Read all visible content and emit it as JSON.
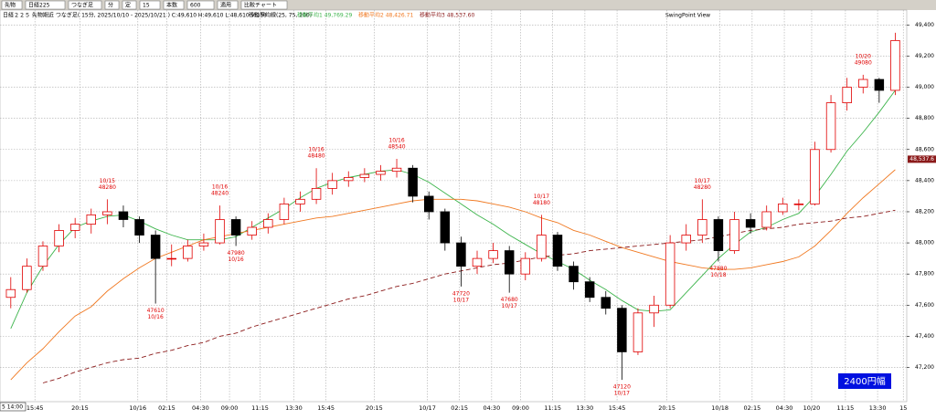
{
  "toolbar": [
    "先物",
    "日経225",
    "つなぎ足",
    "分",
    "定",
    "15",
    "本数",
    "600",
    "適用",
    "比較チャート"
  ],
  "chart_data": {
    "type": "candlestick",
    "title": "日経２２５ 先物期近 つなぎ足( 15分, 2025/10/10 - 2025/10/21 )  C:49,610 H:49,610 L:48,610 V:138",
    "indicator_title": "移動平均線(25, 75, 200)",
    "swing_label": "SwingPoint View",
    "cursor_label": "5 14:00",
    "up_color": "#e00000",
    "down_color": "#000000",
    "ylim": [
      46980,
      49490
    ],
    "xlim": [
      -0.5,
      55.6
    ],
    "grid": true,
    "yticks": [
      {
        "value": 47200,
        "label": "47,200"
      },
      {
        "value": 47400,
        "label": "47,400"
      },
      {
        "value": 47600,
        "label": "47,600"
      },
      {
        "value": 47800,
        "label": "47,800"
      },
      {
        "value": 48000,
        "label": "48,000"
      },
      {
        "value": 48200,
        "label": "48,200"
      },
      {
        "value": 48400,
        "label": "48,400"
      },
      {
        "value": 48600,
        "label": "48,600"
      },
      {
        "value": 48800,
        "label": "48,800"
      },
      {
        "value": 49000,
        "label": "49,000"
      },
      {
        "value": 49200,
        "label": "49,200"
      },
      {
        "value": 49400,
        "label": "49,400"
      }
    ],
    "xticks": [
      {
        "value": 1.5,
        "label": "15:45"
      },
      {
        "value": 4.3,
        "label": "20:15"
      },
      {
        "value": 7.9,
        "label": "10/16"
      },
      {
        "value": 9.7,
        "label": "02:15"
      },
      {
        "value": 11.8,
        "label": "04:30"
      },
      {
        "value": 13.6,
        "label": "09:00"
      },
      {
        "value": 15.5,
        "label": "11:15"
      },
      {
        "value": 17.6,
        "label": "13:30"
      },
      {
        "value": 19.6,
        "label": "15:45"
      },
      {
        "value": 22.6,
        "label": "20:15"
      },
      {
        "value": 25.9,
        "label": "10/17"
      },
      {
        "value": 27.9,
        "label": "02:15"
      },
      {
        "value": 29.9,
        "label": "04:30"
      },
      {
        "value": 31.7,
        "label": "09:00"
      },
      {
        "value": 33.7,
        "label": "11:15"
      },
      {
        "value": 35.7,
        "label": "13:30"
      },
      {
        "value": 37.7,
        "label": "15:45"
      },
      {
        "value": 40.8,
        "label": "20:15"
      },
      {
        "value": 44.1,
        "label": "10/18"
      },
      {
        "value": 46.1,
        "label": "02:15"
      },
      {
        "value": 48.1,
        "label": "04:30"
      },
      {
        "value": 49.8,
        "label": "10/20"
      },
      {
        "value": 51.9,
        "label": "11:15"
      },
      {
        "value": 53.9,
        "label": "13:30"
      },
      {
        "value": 55.5,
        "label": "15"
      }
    ],
    "candles": [
      [
        47650,
        47780,
        47580,
        47700
      ],
      [
        47700,
        47900,
        47680,
        47850
      ],
      [
        47850,
        48010,
        47820,
        47980
      ],
      [
        47980,
        48120,
        47940,
        48080
      ],
      [
        48080,
        48160,
        48030,
        48120
      ],
      [
        48120,
        48220,
        48060,
        48180
      ],
      [
        48180,
        48280,
        48120,
        48200
      ],
      [
        48200,
        48240,
        48100,
        48150
      ],
      [
        48150,
        48170,
        48000,
        48050
      ],
      [
        48050,
        48080,
        47610,
        47900
      ],
      [
        47900,
        47990,
        47850,
        47900
      ],
      [
        47900,
        48020,
        47880,
        47980
      ],
      [
        47980,
        48060,
        47950,
        48000
      ],
      [
        48000,
        48240,
        47990,
        48150
      ],
      [
        48150,
        48170,
        47980,
        48050
      ],
      [
        48050,
        48140,
        48020,
        48100
      ],
      [
        48100,
        48190,
        48060,
        48150
      ],
      [
        48150,
        48290,
        48120,
        48250
      ],
      [
        48250,
        48330,
        48200,
        48280
      ],
      [
        48280,
        48480,
        48250,
        48350
      ],
      [
        48350,
        48450,
        48310,
        48400
      ],
      [
        48400,
        48460,
        48360,
        48420
      ],
      [
        48420,
        48480,
        48390,
        48440
      ],
      [
        48440,
        48500,
        48400,
        48460
      ],
      [
        48460,
        48540,
        48420,
        48480
      ],
      [
        48480,
        48500,
        48260,
        48300
      ],
      [
        48300,
        48330,
        48150,
        48200
      ],
      [
        48200,
        48220,
        47950,
        48000
      ],
      [
        48000,
        48040,
        47720,
        47850
      ],
      [
        47850,
        47950,
        47800,
        47900
      ],
      [
        47900,
        48000,
        47870,
        47950
      ],
      [
        47950,
        47980,
        47680,
        47800
      ],
      [
        47800,
        47940,
        47760,
        47900
      ],
      [
        47900,
        48180,
        47880,
        48050
      ],
      [
        48050,
        48070,
        47820,
        47850
      ],
      [
        47850,
        47880,
        47700,
        47750
      ],
      [
        47750,
        47780,
        47620,
        47650
      ],
      [
        47650,
        47690,
        47540,
        47580
      ],
      [
        47580,
        47600,
        47120,
        47300
      ],
      [
        47300,
        47580,
        47280,
        47550
      ],
      [
        47550,
        47660,
        47460,
        47600
      ],
      [
        47600,
        48050,
        47580,
        48000
      ],
      [
        48000,
        48120,
        47950,
        48050
      ],
      [
        48050,
        48280,
        48000,
        48150
      ],
      [
        48150,
        48170,
        47880,
        47950
      ],
      [
        47950,
        48200,
        47930,
        48150
      ],
      [
        48150,
        48190,
        48060,
        48100
      ],
      [
        48100,
        48240,
        48080,
        48200
      ],
      [
        48200,
        48290,
        48180,
        48250
      ],
      [
        48250,
        48280,
        48210,
        48250
      ],
      [
        48250,
        48650,
        48240,
        48600
      ],
      [
        48600,
        48950,
        48580,
        48900
      ],
      [
        48900,
        49060,
        48850,
        49000
      ],
      [
        49000,
        49080,
        48960,
        49050
      ],
      [
        49050,
        49060,
        48900,
        48980
      ],
      [
        48980,
        49350,
        48950,
        49300
      ]
    ],
    "series": [
      {
        "name": "移動平均1 49,769.29",
        "color": "#3cb44b",
        "dashed": false,
        "values": [
          47450,
          47680,
          47850,
          47990,
          48100,
          48140,
          48170,
          48180,
          48140,
          48090,
          48050,
          48020,
          48020,
          48020,
          48040,
          48100,
          48160,
          48220,
          48290,
          48350,
          48390,
          48420,
          48440,
          48460,
          48470,
          48440,
          48390,
          48320,
          48250,
          48180,
          48120,
          48050,
          47990,
          47930,
          47880,
          47830,
          47760,
          47700,
          47630,
          47570,
          47560,
          47570,
          47680,
          47790,
          47900,
          47990,
          48070,
          48100,
          48150,
          48190,
          48300,
          48440,
          48590,
          48710,
          48840,
          48980
        ]
      },
      {
        "name": "移動平均2 48,426.71",
        "color": "#f07820",
        "dashed": false,
        "values": [
          47120,
          47230,
          47320,
          47430,
          47530,
          47590,
          47690,
          47770,
          47840,
          47900,
          47940,
          47980,
          48020,
          48040,
          48060,
          48080,
          48100,
          48120,
          48140,
          48160,
          48170,
          48190,
          48210,
          48230,
          48250,
          48270,
          48280,
          48280,
          48280,
          48270,
          48250,
          48230,
          48200,
          48160,
          48130,
          48080,
          48050,
          48010,
          47970,
          47940,
          47910,
          47880,
          47860,
          47840,
          47830,
          47830,
          47840,
          47860,
          47880,
          47910,
          47980,
          48080,
          48190,
          48290,
          48380,
          48470
        ]
      },
      {
        "name": "移動平均3 48,537.60",
        "color": "#8b1a1a",
        "dashed": true,
        "values": [
          null,
          null,
          47100,
          47130,
          47170,
          47200,
          47230,
          47250,
          47260,
          47290,
          47310,
          47340,
          47360,
          47400,
          47420,
          47460,
          47490,
          47520,
          47550,
          47580,
          47610,
          47640,
          47660,
          47690,
          47720,
          47740,
          47770,
          47800,
          47820,
          47840,
          47860,
          47870,
          47890,
          47910,
          47920,
          47930,
          47950,
          47960,
          47970,
          47980,
          47990,
          48000,
          48010,
          48020,
          48040,
          48060,
          48080,
          48090,
          48100,
          48120,
          48130,
          48140,
          48160,
          48170,
          48190,
          48210
        ]
      }
    ],
    "annotations": [
      {
        "x": 6,
        "date": "10/15",
        "price": 48280,
        "side": "high"
      },
      {
        "x": 9,
        "date": "10/16",
        "price": 47610,
        "side": "low"
      },
      {
        "x": 13,
        "date": "10/16",
        "price": 48240,
        "side": "high"
      },
      {
        "x": 14,
        "date": "10/16",
        "price": 47980,
        "side": "low"
      },
      {
        "x": 19,
        "date": "10/16",
        "price": 48480,
        "side": "high"
      },
      {
        "x": 24,
        "date": "10/16",
        "price": 48540,
        "side": "high"
      },
      {
        "x": 28,
        "date": "10/17",
        "price": 47720,
        "side": "low"
      },
      {
        "x": 31,
        "date": "10/17",
        "price": 47680,
        "side": "low"
      },
      {
        "x": 33,
        "date": "10/17",
        "price": 48180,
        "side": "high"
      },
      {
        "x": 38,
        "date": "10/17",
        "price": 47120,
        "side": "low"
      },
      {
        "x": 43,
        "date": "10/17",
        "price": 48280,
        "side": "high"
      },
      {
        "x": 44,
        "date": "10/18",
        "price": 47880,
        "side": "low"
      },
      {
        "x": 53,
        "date": "10/20",
        "price": 49080,
        "side": "high"
      }
    ],
    "price_tag": {
      "value": 48537.6,
      "label": "48,537.6",
      "color": "#8b1a1a"
    },
    "range_box": {
      "label": "2400円幅",
      "color": "#0010e0"
    }
  }
}
